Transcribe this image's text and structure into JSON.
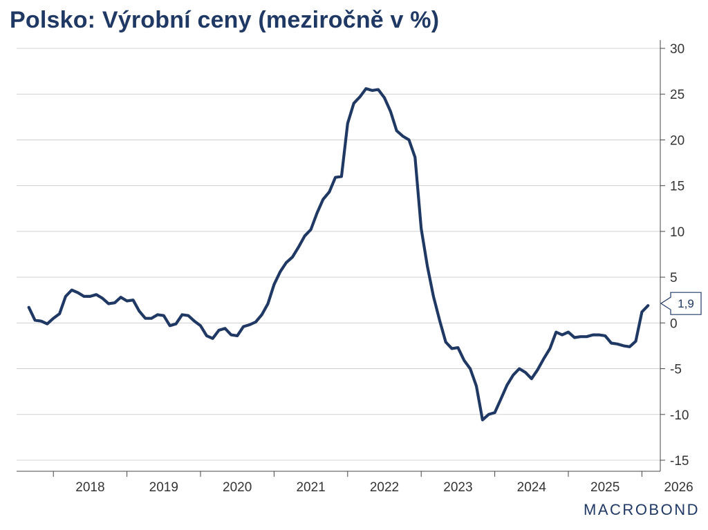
{
  "title": "Polsko: Výrobní ceny (meziročně v %)",
  "brand": {
    "text": "MACROBOND",
    "color": "#1f3864"
  },
  "chart_data": {
    "type": "line",
    "title": "Polsko: Výrobní ceny (meziročně v %)",
    "xlabel": "",
    "ylabel": "",
    "ylim": [
      -15,
      30
    ],
    "yticks": [
      30,
      25,
      20,
      15,
      10,
      5,
      0,
      -5,
      -10,
      -15
    ],
    "xlim": [
      "2017-07",
      "2026-04"
    ],
    "xticks": [
      "2018",
      "2019",
      "2020",
      "2021",
      "2022",
      "2023",
      "2024",
      "2025",
      "2026"
    ],
    "y_axis_position": "right",
    "grid": true,
    "series": [
      {
        "color": "#1f3864",
        "x": [
          "2017-09",
          "2017-10",
          "2017-11",
          "2017-12",
          "2018-01",
          "2018-02",
          "2018-03",
          "2018-04",
          "2018-05",
          "2018-06",
          "2018-07",
          "2018-08",
          "2018-09",
          "2018-10",
          "2018-11",
          "2018-12",
          "2019-01",
          "2019-02",
          "2019-03",
          "2019-04",
          "2019-05",
          "2019-06",
          "2019-07",
          "2019-08",
          "2019-09",
          "2019-10",
          "2019-11",
          "2019-12",
          "2020-01",
          "2020-02",
          "2020-03",
          "2020-04",
          "2020-05",
          "2020-06",
          "2020-07",
          "2020-08",
          "2020-09",
          "2020-10",
          "2020-11",
          "2020-12",
          "2021-01",
          "2021-02",
          "2021-03",
          "2021-04",
          "2021-05",
          "2021-06",
          "2021-07",
          "2021-08",
          "2021-09",
          "2021-10",
          "2021-11",
          "2021-12",
          "2022-01",
          "2022-02",
          "2022-03",
          "2022-04",
          "2022-05",
          "2022-06",
          "2022-07",
          "2022-08",
          "2022-09",
          "2022-10",
          "2022-11",
          "2022-12",
          "2023-01",
          "2023-02",
          "2023-03",
          "2023-04",
          "2023-05",
          "2023-06",
          "2023-07",
          "2023-08",
          "2023-09",
          "2023-10",
          "2023-11",
          "2023-12",
          "2024-01",
          "2024-02",
          "2024-03",
          "2024-04",
          "2024-05",
          "2024-06",
          "2024-07",
          "2024-08",
          "2024-09",
          "2024-10",
          "2024-11",
          "2024-12",
          "2025-01",
          "2025-02",
          "2025-03",
          "2025-04",
          "2025-05",
          "2025-06",
          "2025-07",
          "2025-08",
          "2025-09",
          "2025-10",
          "2025-11",
          "2025-12",
          "2026-01",
          "2026-02"
        ],
        "values": [
          1.7,
          0.3,
          0.2,
          -0.1,
          0.5,
          1.0,
          2.9,
          3.6,
          3.3,
          2.9,
          2.9,
          3.1,
          2.7,
          2.1,
          2.2,
          2.8,
          2.4,
          2.5,
          1.3,
          0.5,
          0.5,
          0.9,
          0.8,
          -0.3,
          -0.1,
          0.9,
          0.8,
          0.2,
          -0.3,
          -1.4,
          -1.7,
          -0.8,
          -0.6,
          -1.3,
          -1.4,
          -0.4,
          -0.2,
          0.1,
          0.9,
          2.1,
          4.2,
          5.6,
          6.6,
          7.2,
          8.3,
          9.5,
          10.2,
          12.0,
          13.5,
          14.3,
          15.9,
          16.0,
          21.8,
          24.0,
          24.7,
          25.6,
          25.4,
          25.5,
          24.6,
          23.1,
          21.0,
          20.4,
          20.0,
          18.1,
          10.3,
          6.2,
          2.9,
          0.3,
          -2.1,
          -2.8,
          -2.7,
          -4.1,
          -5.0,
          -6.9,
          -10.6,
          -10.0,
          -9.8,
          -8.3,
          -6.8,
          -5.7,
          -5.0,
          -5.4,
          -6.1,
          -5.1,
          -3.9,
          -2.8,
          -1.0,
          -1.3,
          -1.0,
          -1.6,
          -1.5,
          -1.5,
          -1.3,
          -1.3,
          -1.4,
          -2.2,
          -2.3,
          -2.5,
          -2.6,
          -2.0,
          1.2,
          1.9
        ]
      }
    ],
    "annotations": [
      {
        "type": "last-value-callout",
        "label": "1,9",
        "value": 1.9
      }
    ]
  }
}
